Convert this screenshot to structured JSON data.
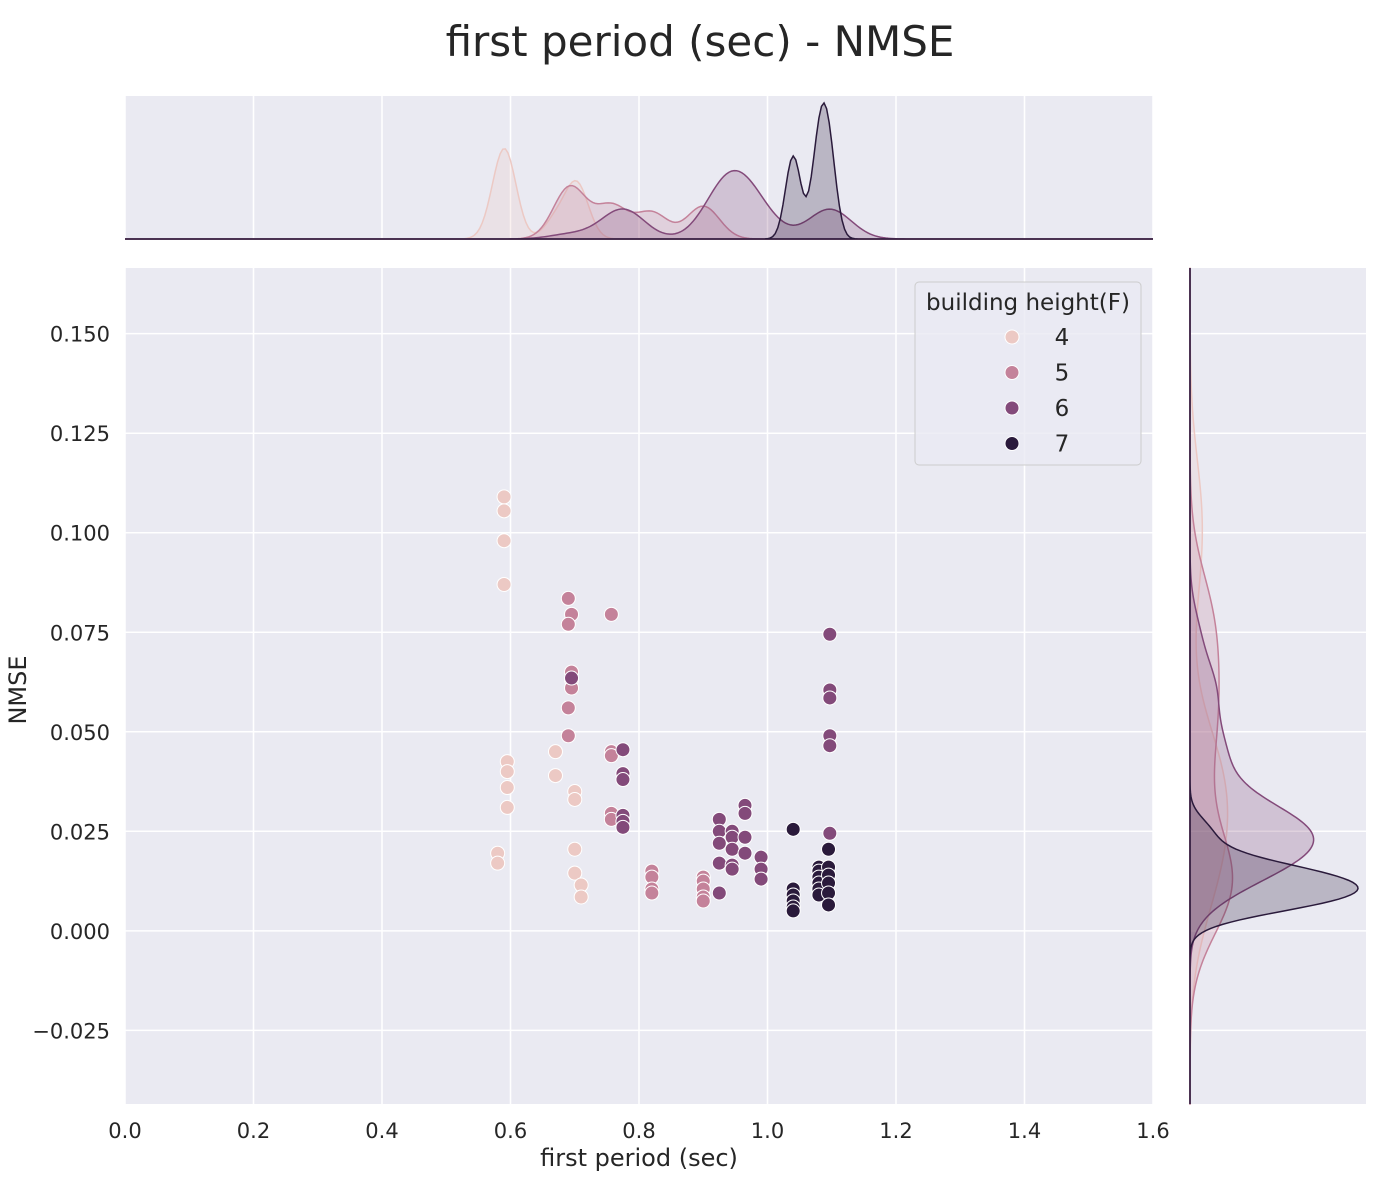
{
  "chart_data": {
    "type": "scatter",
    "title": "first period (sec) - NMSE",
    "xlabel": "first period (sec)",
    "ylabel": "NMSE",
    "xlim": [
      0.0,
      1.6
    ],
    "ylim": [
      -0.0435,
      0.1665
    ],
    "x_ticks": [
      "0.0",
      "0.2",
      "0.4",
      "0.6",
      "0.8",
      "1.0",
      "1.2",
      "1.4",
      "1.6"
    ],
    "y_ticks": [
      "−0.025",
      "0.000",
      "0.025",
      "0.050",
      "0.075",
      "0.100",
      "0.125",
      "0.150"
    ],
    "grid": true,
    "legend": {
      "title": "building height(F)",
      "position": "top-right"
    },
    "marginals": {
      "top": "kde of first period per group",
      "right": "kde of NMSE per group"
    },
    "series": [
      {
        "name": "4",
        "color": "#ecc9c4",
        "points": [
          [
            0.59,
            0.109
          ],
          [
            0.59,
            0.1055
          ],
          [
            0.59,
            0.098
          ],
          [
            0.59,
            0.087
          ],
          [
            0.595,
            0.0425
          ],
          [
            0.595,
            0.04
          ],
          [
            0.595,
            0.036
          ],
          [
            0.595,
            0.031
          ],
          [
            0.58,
            0.0195
          ],
          [
            0.58,
            0.017
          ],
          [
            0.67,
            0.045
          ],
          [
            0.67,
            0.039
          ],
          [
            0.7,
            0.035
          ],
          [
            0.7,
            0.033
          ],
          [
            0.7,
            0.0205
          ],
          [
            0.7,
            0.0145
          ],
          [
            0.71,
            0.0115
          ],
          [
            0.71,
            0.0085
          ]
        ]
      },
      {
        "name": "5",
        "color": "#c4829a",
        "points": [
          [
            0.69,
            0.0835
          ],
          [
            0.695,
            0.0795
          ],
          [
            0.69,
            0.077
          ],
          [
            0.695,
            0.065
          ],
          [
            0.695,
            0.063
          ],
          [
            0.695,
            0.061
          ],
          [
            0.69,
            0.056
          ],
          [
            0.69,
            0.049
          ],
          [
            0.757,
            0.0795
          ],
          [
            0.757,
            0.045
          ],
          [
            0.757,
            0.044
          ],
          [
            0.757,
            0.0295
          ],
          [
            0.757,
            0.028
          ],
          [
            0.82,
            0.015
          ],
          [
            0.82,
            0.0135
          ],
          [
            0.82,
            0.0105
          ],
          [
            0.82,
            0.0095
          ],
          [
            0.9,
            0.0135
          ],
          [
            0.9,
            0.0125
          ],
          [
            0.9,
            0.0105
          ],
          [
            0.9,
            0.0085
          ],
          [
            0.9,
            0.0075
          ]
        ]
      },
      {
        "name": "6",
        "color": "#834a7a",
        "points": [
          [
            0.695,
            0.0635
          ],
          [
            0.775,
            0.0455
          ],
          [
            0.775,
            0.0395
          ],
          [
            0.775,
            0.038
          ],
          [
            0.775,
            0.029
          ],
          [
            0.775,
            0.0275
          ],
          [
            0.775,
            0.026
          ],
          [
            0.925,
            0.028
          ],
          [
            0.925,
            0.025
          ],
          [
            0.925,
            0.022
          ],
          [
            0.925,
            0.017
          ],
          [
            0.925,
            0.0095
          ],
          [
            0.945,
            0.025
          ],
          [
            0.945,
            0.0235
          ],
          [
            0.945,
            0.0205
          ],
          [
            0.945,
            0.0165
          ],
          [
            0.945,
            0.0155
          ],
          [
            0.965,
            0.0315
          ],
          [
            0.965,
            0.0295
          ],
          [
            0.965,
            0.0235
          ],
          [
            0.965,
            0.0195
          ],
          [
            0.99,
            0.0185
          ],
          [
            0.99,
            0.0155
          ],
          [
            0.99,
            0.013
          ],
          [
            1.097,
            0.0745
          ],
          [
            1.097,
            0.0605
          ],
          [
            1.097,
            0.0585
          ],
          [
            1.097,
            0.049
          ],
          [
            1.097,
            0.0465
          ],
          [
            1.097,
            0.0245
          ]
        ]
      },
      {
        "name": "7",
        "color": "#2a1a3b",
        "points": [
          [
            1.04,
            0.0255
          ],
          [
            1.04,
            0.0105
          ],
          [
            1.04,
            0.009
          ],
          [
            1.04,
            0.0075
          ],
          [
            1.04,
            0.006
          ],
          [
            1.04,
            0.005
          ],
          [
            1.08,
            0.016
          ],
          [
            1.08,
            0.015
          ],
          [
            1.08,
            0.0135
          ],
          [
            1.08,
            0.012
          ],
          [
            1.08,
            0.0105
          ],
          [
            1.08,
            0.009
          ],
          [
            1.095,
            0.0205
          ],
          [
            1.095,
            0.016
          ],
          [
            1.095,
            0.014
          ],
          [
            1.095,
            0.012
          ],
          [
            1.095,
            0.0095
          ],
          [
            1.095,
            0.0065
          ]
        ]
      }
    ]
  }
}
